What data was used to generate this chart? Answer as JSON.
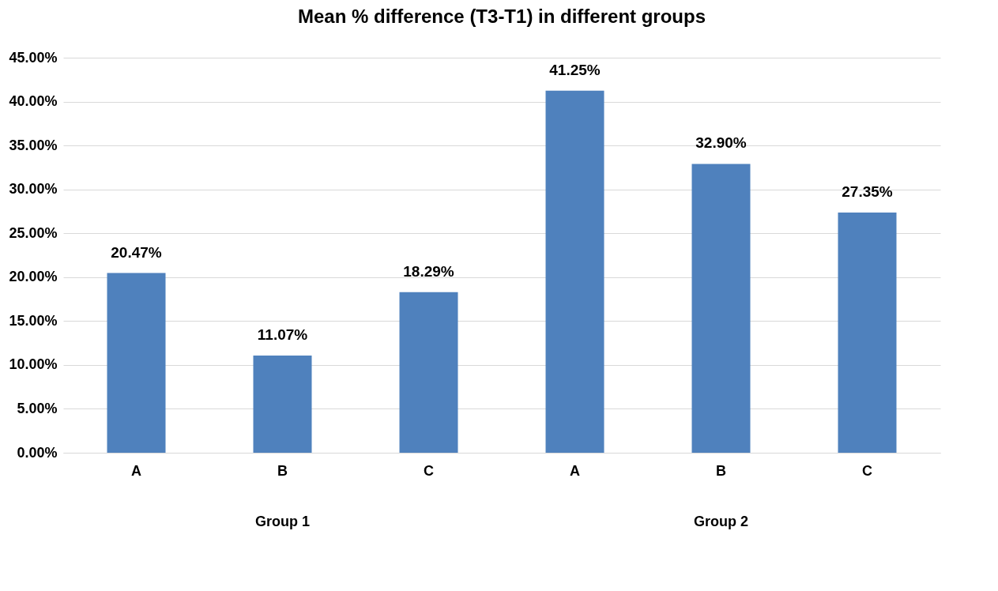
{
  "chart_data": {
    "type": "bar",
    "title": "Mean % difference (T3-T1) in different groups",
    "categories": [
      "A",
      "B",
      "C",
      "A",
      "B",
      "C"
    ],
    "values": [
      20.47,
      11.07,
      18.29,
      41.25,
      32.9,
      27.35
    ],
    "value_labels": [
      "20.47%",
      "11.07%",
      "18.29%",
      "41.25%",
      "32.90%",
      "27.35%"
    ],
    "color": "#4f81bd",
    "ylim": [
      0,
      45
    ],
    "yticks": [
      {
        "value": 0,
        "label": "0.00%"
      },
      {
        "value": 5,
        "label": "5.00%"
      },
      {
        "value": 10,
        "label": "10.00%"
      },
      {
        "value": 15,
        "label": "15.00%"
      },
      {
        "value": 20,
        "label": "20.00%"
      },
      {
        "value": 25,
        "label": "25.00%"
      },
      {
        "value": 30,
        "label": "30.00%"
      },
      {
        "value": 35,
        "label": "35.00%"
      },
      {
        "value": 40,
        "label": "40.00%"
      },
      {
        "value": 45,
        "label": "45.00%"
      }
    ],
    "annotations": [
      "Group 1",
      "Group 2"
    ],
    "grid": "y"
  }
}
